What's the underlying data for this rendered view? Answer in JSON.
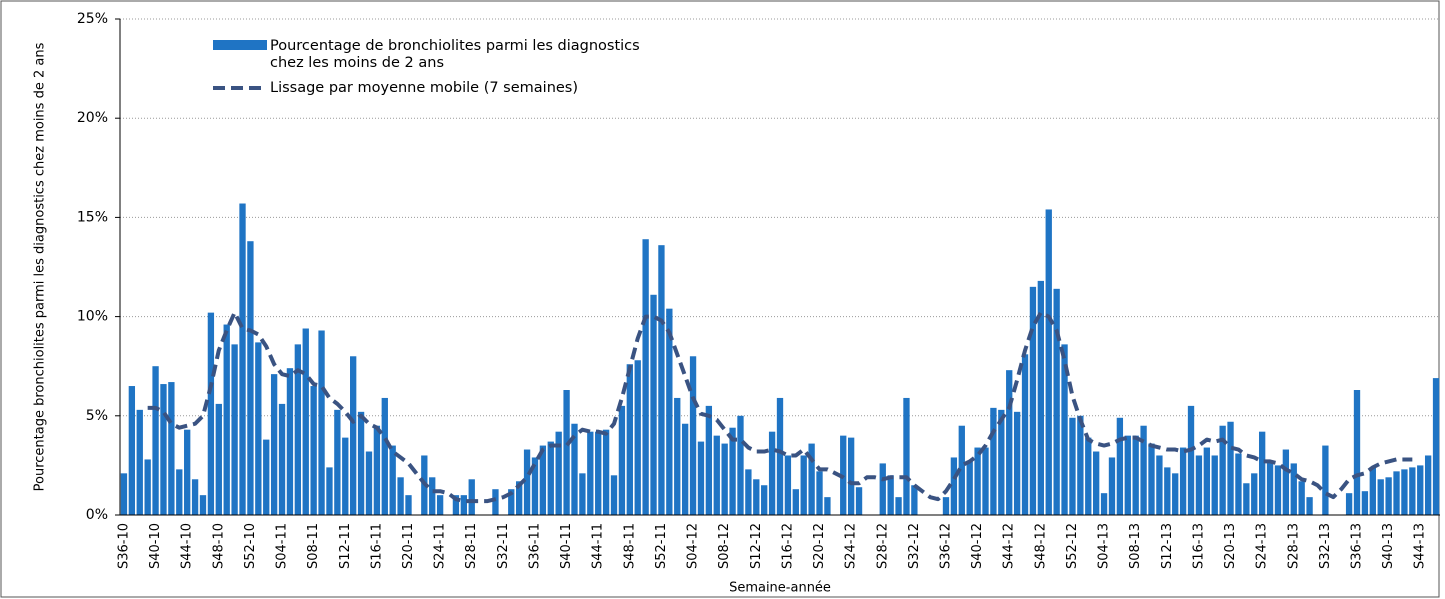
{
  "chart_data": {
    "type": "bar",
    "y_label": "Pourcentage bronchiolites parmi les diagnostics chez moins de 2 ans",
    "x_label": "Semaine-année",
    "categories": [
      "S36-10",
      null,
      null,
      null,
      "S40-10",
      null,
      null,
      null,
      "S44-10",
      null,
      null,
      null,
      "S48-10",
      null,
      null,
      null,
      "S52-10",
      null,
      null,
      null,
      "S04-11",
      null,
      null,
      null,
      "S08-11",
      null,
      null,
      null,
      "S12-11",
      null,
      null,
      null,
      "S16-11",
      null,
      null,
      null,
      "S20-11",
      null,
      null,
      null,
      "S24-11",
      null,
      null,
      null,
      "S28-11",
      null,
      null,
      null,
      "S32-11",
      null,
      null,
      null,
      "S36-11",
      null,
      null,
      null,
      "S40-11",
      null,
      null,
      null,
      "S44-11",
      null,
      null,
      null,
      "S48-11",
      null,
      null,
      null,
      "S52-11",
      null,
      null,
      null,
      "S04-12",
      null,
      null,
      null,
      "S08-12",
      null,
      null,
      null,
      "S12-12",
      null,
      null,
      null,
      "S16-12",
      null,
      null,
      null,
      "S20-12",
      null,
      null,
      null,
      "S24-12",
      null,
      null,
      null,
      "S28-12",
      null,
      null,
      null,
      "S32-12",
      null,
      null,
      null,
      "S36-12",
      null,
      null,
      null,
      "S40-12",
      null,
      null,
      null,
      "S44-12",
      null,
      null,
      null,
      "S48-12",
      null,
      null,
      null,
      "S52-12",
      null,
      null,
      null,
      "S04-13",
      null,
      null,
      null,
      "S08-13",
      null,
      null,
      null,
      "S12-13",
      null,
      null,
      null,
      "S16-13",
      null,
      null,
      null,
      "S20-13",
      null,
      null,
      null,
      "S24-13",
      null,
      null,
      null,
      "S28-13",
      null,
      null,
      null,
      "S32-13",
      null,
      null,
      null,
      "S36-13",
      null,
      null,
      null,
      "S40-13",
      null,
      null,
      null,
      "S44-13",
      null,
      null
    ],
    "series": [
      {
        "name": "Pourcentage de bronchiolites parmi les diagnostics chez les moins de 2 ans",
        "type": "bar",
        "color": "#1f74c4",
        "values": [
          2.1,
          6.5,
          5.3,
          2.8,
          7.5,
          6.6,
          6.7,
          2.3,
          4.3,
          1.8,
          1.0,
          10.2,
          5.6,
          9.6,
          8.6,
          15.7,
          13.8,
          8.7,
          3.8,
          7.1,
          5.6,
          7.4,
          8.6,
          9.4,
          6.5,
          9.3,
          2.4,
          5.3,
          3.9,
          8.0,
          5.2,
          3.2,
          4.5,
          5.9,
          3.5,
          1.9,
          1.0,
          0,
          3.0,
          1.9,
          1.0,
          0,
          1.0,
          1.0,
          1.8,
          0,
          0,
          1.3,
          0,
          1.3,
          1.7,
          3.3,
          2.9,
          3.5,
          3.7,
          4.2,
          6.3,
          4.6,
          2.1,
          4.2,
          4.2,
          4.3,
          2.0,
          5.5,
          7.6,
          7.8,
          13.9,
          11.1,
          13.6,
          10.4,
          5.9,
          4.6,
          8.0,
          3.7,
          5.5,
          4.0,
          3.6,
          4.4,
          5.0,
          2.3,
          1.8,
          1.5,
          4.2,
          5.9,
          3.0,
          1.3,
          3.0,
          3.6,
          2.2,
          0.9,
          0,
          4.0,
          3.9,
          1.4,
          0,
          0,
          2.6,
          2.0,
          0.9,
          5.9,
          1.5,
          0,
          0,
          0,
          0.9,
          2.9,
          4.5,
          2.7,
          3.4,
          3.4,
          5.4,
          5.3,
          7.3,
          5.2,
          8.1,
          11.5,
          11.8,
          15.4,
          11.4,
          8.6,
          4.9,
          5.0,
          3.9,
          3.2,
          1.1,
          2.9,
          4.9,
          4.0,
          4.0,
          4.5,
          3.6,
          3.0,
          2.4,
          2.1,
          3.4,
          5.5,
          3.0,
          3.4,
          3.0,
          4.5,
          4.7,
          3.1,
          1.6,
          2.1,
          4.2,
          2.7,
          2.5,
          3.3,
          2.6,
          1.7,
          0.9,
          0,
          3.5,
          0,
          0,
          1.1,
          6.3,
          1.2,
          2.4,
          1.8,
          1.9,
          2.2,
          2.3,
          2.4,
          2.5,
          3.0,
          6.9
        ]
      },
      {
        "name": "Lissage par moyenne mobile (7 semaines)",
        "type": "line",
        "color": "#3a5382",
        "values": [
          null,
          null,
          null,
          5.4,
          5.4,
          5.2,
          4.6,
          4.4,
          4.5,
          4.6,
          5.0,
          6.5,
          8.3,
          9.3,
          10.2,
          9.4,
          9.3,
          9.1,
          8.5,
          7.6,
          7.1,
          7.0,
          7.3,
          7.1,
          6.6,
          6.5,
          5.9,
          5.6,
          5.2,
          4.7,
          5.0,
          4.6,
          4.4,
          3.9,
          3.2,
          2.9,
          2.6,
          2.1,
          1.6,
          1.2,
          1.2,
          1.1,
          0.8,
          0.7,
          0.7,
          0.7,
          0.7,
          0.8,
          0.9,
          1.1,
          1.5,
          1.9,
          2.6,
          3.3,
          3.5,
          3.5,
          3.5,
          4.0,
          4.3,
          4.2,
          4.2,
          4.1,
          4.6,
          5.9,
          7.4,
          8.9,
          10.0,
          10.0,
          9.8,
          9.2,
          8.1,
          7.0,
          5.9,
          5.1,
          5.0,
          4.8,
          4.3,
          3.8,
          3.8,
          3.4,
          3.2,
          3.2,
          3.3,
          3.2,
          3.0,
          3.0,
          3.3,
          2.8,
          2.3,
          2.3,
          2.1,
          1.9,
          1.6,
          1.6,
          1.9,
          1.9,
          1.8,
          1.9,
          1.9,
          1.9,
          1.5,
          1.2,
          0.9,
          0.8,
          1.2,
          1.8,
          2.5,
          2.7,
          3.0,
          3.5,
          4.2,
          4.8,
          5.4,
          6.8,
          8.3,
          9.5,
          10.2,
          10.0,
          9.3,
          7.8,
          6.0,
          4.8,
          3.8,
          3.6,
          3.5,
          3.6,
          3.8,
          3.9,
          3.9,
          3.7,
          3.5,
          3.4,
          3.3,
          3.3,
          3.2,
          3.3,
          3.5,
          3.8,
          3.7,
          3.8,
          3.4,
          3.3,
          3.0,
          2.9,
          2.7,
          2.7,
          2.6,
          2.3,
          2.1,
          1.8,
          1.7,
          1.5,
          1.1,
          0.9,
          1.3,
          1.8,
          2.0,
          2.1,
          2.4,
          2.6,
          2.7,
          2.8,
          2.8,
          2.8,
          null,
          null,
          null
        ]
      }
    ],
    "ylim": [
      0,
      25
    ],
    "yticks": [
      {
        "value": 0,
        "label": "0%"
      },
      {
        "value": 5,
        "label": "5%"
      },
      {
        "value": 10,
        "label": "10%"
      },
      {
        "value": 15,
        "label": "15%"
      },
      {
        "value": 20,
        "label": "20%"
      },
      {
        "value": 25,
        "label": "25%"
      }
    ],
    "grid": true,
    "legend": "top-left"
  }
}
